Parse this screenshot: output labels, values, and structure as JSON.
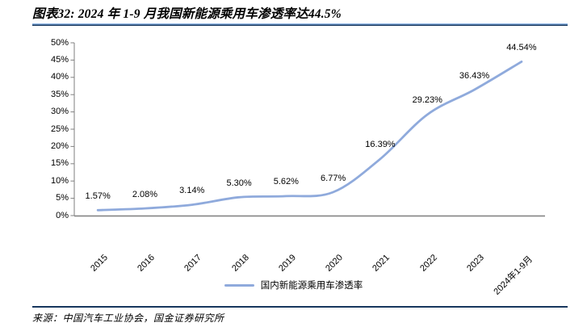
{
  "title": "图表32: 2024 年 1-9 月我国新能源乘用车渗透率达44.5%",
  "source": "来源：中国汽车工业协会，国金证券研究所",
  "legend": {
    "label": "国内新能源乘用车渗透率",
    "position": "bottom"
  },
  "colors": {
    "line": "#8FAADC",
    "axis": "#7F7F7F",
    "title_rule_top": "#8EB4E3",
    "title_rule_bottom": "#17375E",
    "footer_rule": "#17375E",
    "text": "#000000",
    "background": "#FFFFFF"
  },
  "chart_data": {
    "type": "line",
    "title": "2024 年 1-9 月我国新能源乘用车渗透率达44.5%",
    "categories": [
      "2015",
      "2016",
      "2017",
      "2018",
      "2019",
      "2020",
      "2021",
      "2022",
      "2023",
      "2024年1-9月"
    ],
    "series": [
      {
        "name": "国内新能源乘用车渗透率",
        "values": [
          1.57,
          2.08,
          3.14,
          5.3,
          5.62,
          6.77,
          16.39,
          29.23,
          36.43,
          44.54
        ]
      }
    ],
    "data_labels": [
      "1.57%",
      "2.08%",
      "3.14%",
      "5.30%",
      "5.62%",
      "6.77%",
      "16.39%",
      "29.23%",
      "36.43%",
      "44.54%"
    ],
    "y_tick_labels": [
      "0%",
      "5%",
      "10%",
      "15%",
      "20%",
      "25%",
      "30%",
      "35%",
      "40%",
      "45%",
      "50%"
    ],
    "xlabel": "",
    "ylabel": "",
    "ylim": [
      0,
      50
    ],
    "grid": false,
    "smoothed": true,
    "legend_position": "bottom"
  }
}
